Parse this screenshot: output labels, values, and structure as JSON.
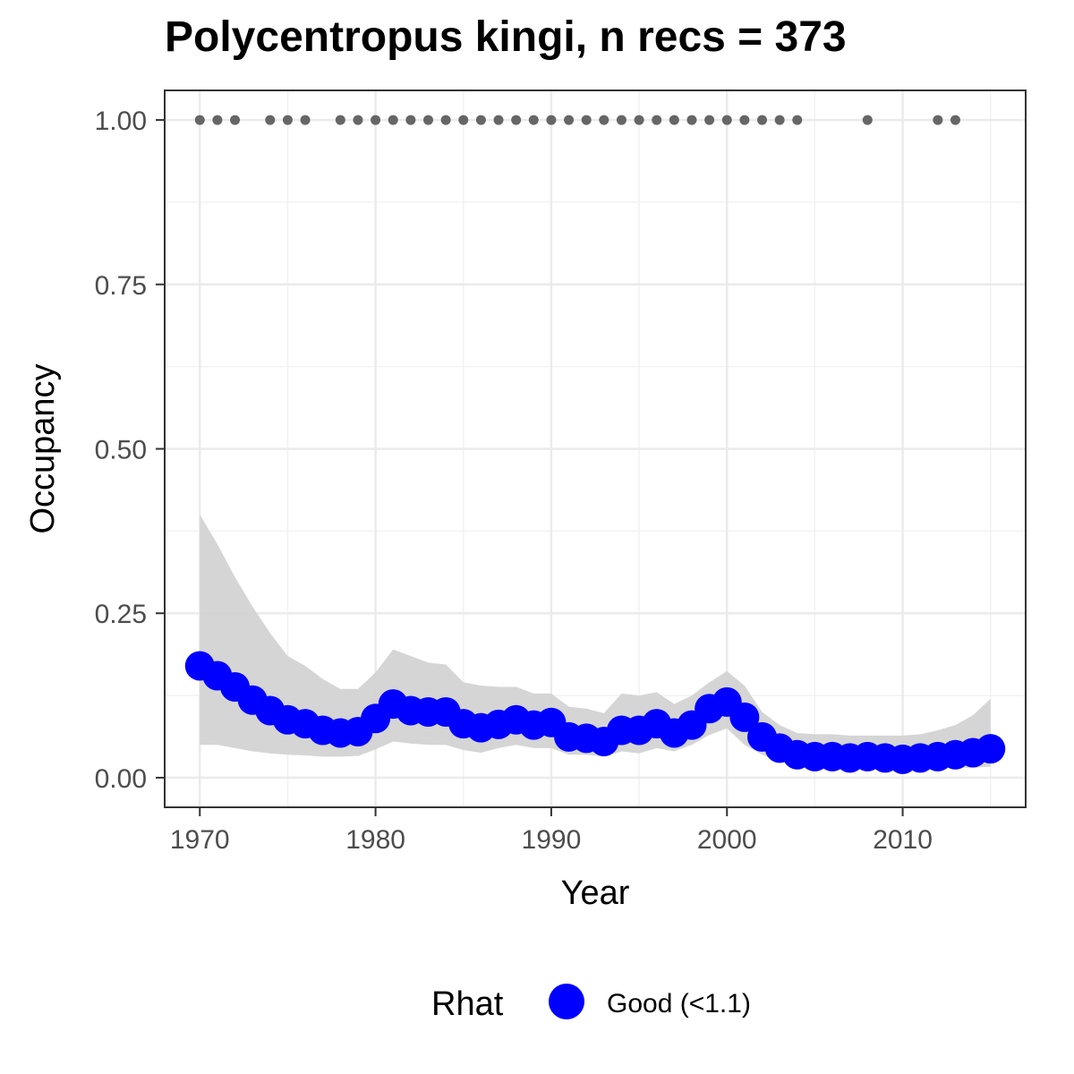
{
  "chart_data": {
    "type": "line",
    "title": "Polycentropus kingi, n recs = 373",
    "xlabel": "Year",
    "ylabel": "Occupancy",
    "xlim": [
      1968,
      2017
    ],
    "ylim": [
      -0.045,
      1.045
    ],
    "x_ticks": [
      1970,
      1980,
      1990,
      2000,
      2010
    ],
    "y_ticks": [
      0.0,
      0.25,
      0.5,
      0.75,
      1.0
    ],
    "x_tick_labels": [
      "1970",
      "1980",
      "1990",
      "2000",
      "2010"
    ],
    "y_tick_labels": [
      "0.00",
      "0.25",
      "0.50",
      "0.75",
      "1.00"
    ],
    "grid": true,
    "legend_position": "bottom",
    "legend": {
      "title": "Rhat",
      "entries": [
        {
          "label": "Good (<1.1)",
          "color": "#0000ff"
        }
      ]
    },
    "colors": {
      "series": "#0000ff",
      "ribbon": "#d3d3d3",
      "records": "#666666"
    },
    "series": [
      {
        "name": "Good (<1.1)",
        "x": [
          1970,
          1971,
          1972,
          1973,
          1974,
          1975,
          1976,
          1977,
          1978,
          1979,
          1980,
          1981,
          1982,
          1983,
          1984,
          1985,
          1986,
          1987,
          1988,
          1989,
          1990,
          1991,
          1992,
          1993,
          1994,
          1995,
          1996,
          1997,
          1998,
          1999,
          2000,
          2001,
          2002,
          2003,
          2004,
          2005,
          2006,
          2007,
          2008,
          2009,
          2010,
          2011,
          2012,
          2013,
          2014,
          2015
        ],
        "y": [
          0.17,
          0.155,
          0.138,
          0.118,
          0.102,
          0.088,
          0.082,
          0.072,
          0.068,
          0.07,
          0.09,
          0.112,
          0.102,
          0.1,
          0.1,
          0.082,
          0.076,
          0.081,
          0.088,
          0.08,
          0.084,
          0.062,
          0.06,
          0.055,
          0.072,
          0.072,
          0.082,
          0.068,
          0.08,
          0.105,
          0.115,
          0.092,
          0.062,
          0.045,
          0.035,
          0.032,
          0.032,
          0.03,
          0.032,
          0.03,
          0.028,
          0.03,
          0.032,
          0.035,
          0.038,
          0.044
        ],
        "lower": [
          0.05,
          0.05,
          0.045,
          0.04,
          0.037,
          0.035,
          0.034,
          0.032,
          0.032,
          0.033,
          0.043,
          0.055,
          0.052,
          0.05,
          0.05,
          0.042,
          0.038,
          0.045,
          0.05,
          0.045,
          0.045,
          0.035,
          0.035,
          0.032,
          0.04,
          0.037,
          0.045,
          0.04,
          0.05,
          0.065,
          0.075,
          0.05,
          0.035,
          0.025,
          0.02,
          0.018,
          0.018,
          0.017,
          0.016,
          0.015,
          0.014,
          0.014,
          0.014,
          0.015,
          0.015,
          0.017
        ],
        "upper": [
          0.4,
          0.355,
          0.305,
          0.26,
          0.22,
          0.185,
          0.17,
          0.15,
          0.135,
          0.135,
          0.16,
          0.195,
          0.185,
          0.175,
          0.172,
          0.145,
          0.14,
          0.138,
          0.138,
          0.128,
          0.128,
          0.108,
          0.105,
          0.098,
          0.128,
          0.125,
          0.13,
          0.112,
          0.125,
          0.145,
          0.162,
          0.14,
          0.1,
          0.08,
          0.068,
          0.066,
          0.066,
          0.064,
          0.064,
          0.064,
          0.064,
          0.066,
          0.072,
          0.08,
          0.095,
          0.12
        ]
      }
    ],
    "record_years": [
      1970,
      1971,
      1972,
      1974,
      1975,
      1976,
      1978,
      1979,
      1980,
      1981,
      1982,
      1983,
      1984,
      1985,
      1986,
      1987,
      1988,
      1989,
      1990,
      1991,
      1992,
      1993,
      1994,
      1995,
      1996,
      1997,
      1998,
      1999,
      2000,
      2001,
      2002,
      2003,
      2004,
      2008,
      2012,
      2013
    ],
    "record_value": 1.0
  }
}
